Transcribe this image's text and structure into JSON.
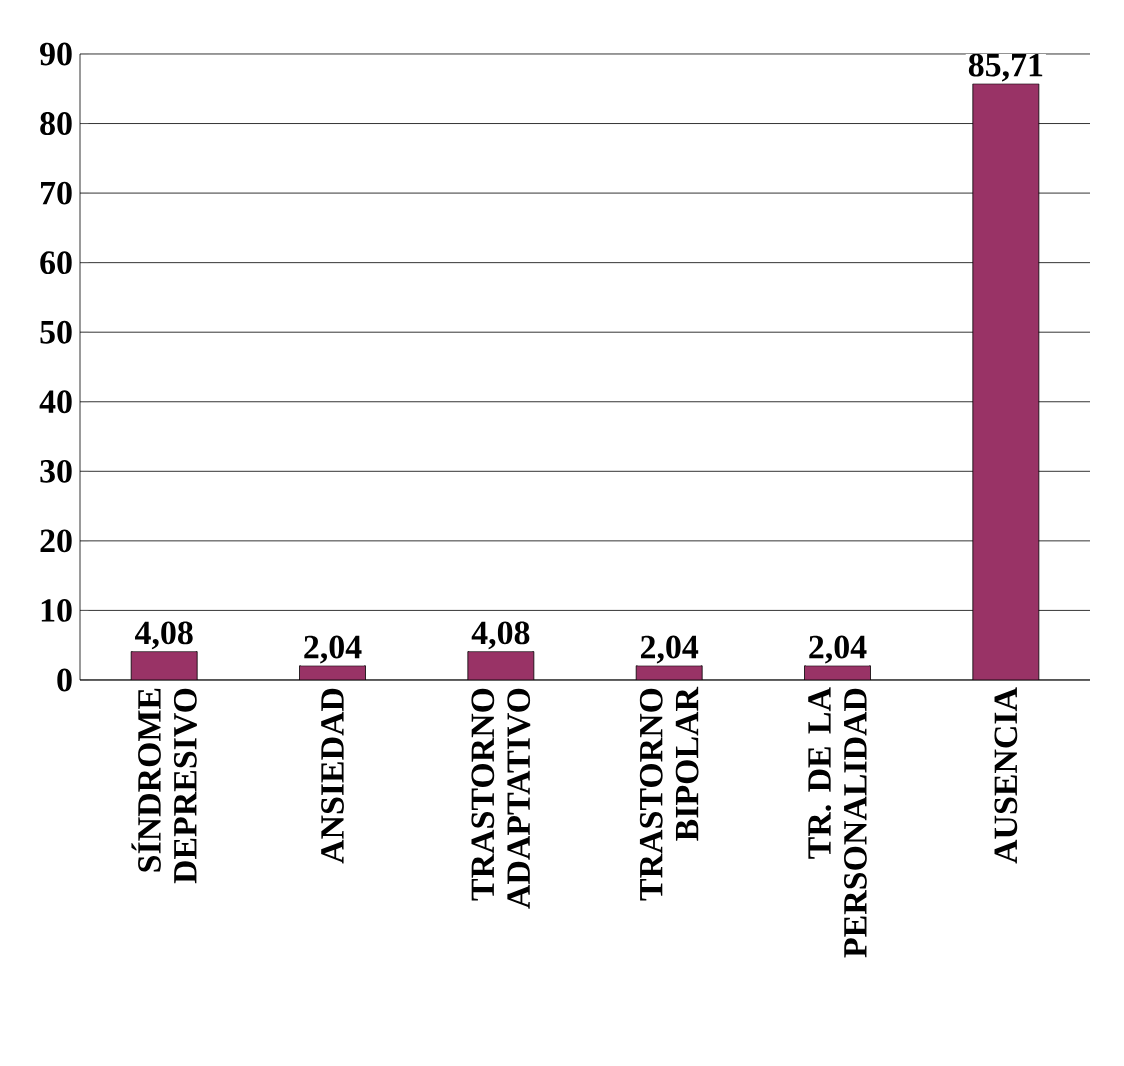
{
  "chart_data": {
    "type": "bar",
    "categories": [
      "SÍNDROME DEPRESIVO",
      "ANSIEDAD",
      "TRASTORNO ADAPTATIVO",
      "TRASTORNO BIPOLAR",
      "TR. DE LA PERSONALIDAD",
      "AUSENCIA"
    ],
    "values": [
      4.08,
      2.04,
      4.08,
      2.04,
      2.04,
      85.71
    ],
    "value_labels": [
      "4,08",
      "2,04",
      "4,08",
      "2,04",
      "2,04",
      "85,71"
    ],
    "color": "#993366",
    "ylim": [
      0,
      90
    ],
    "yticks": [
      0,
      10,
      20,
      30,
      40,
      50,
      60,
      70,
      80,
      90
    ],
    "grid": "y"
  }
}
